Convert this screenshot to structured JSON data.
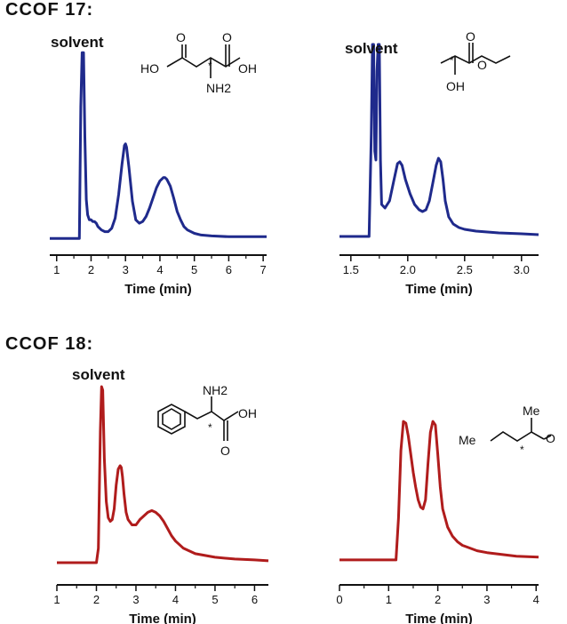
{
  "sections": [
    {
      "title": "CCOF 17:"
    },
    {
      "title": "CCOF 18:"
    }
  ],
  "chart_data": [
    {
      "type": "line",
      "title": "",
      "xlabel": "Time (min)",
      "ylabel": "",
      "xlim": [
        0.8,
        7.1
      ],
      "xticks": [
        1,
        2,
        3,
        4,
        5,
        6,
        7
      ],
      "x_tick_labels": [
        "1",
        "2",
        "3",
        "4",
        "5",
        "6",
        "7"
      ],
      "color": "#1f2a8c",
      "annotations": [
        {
          "text": "solvent"
        }
      ],
      "structure": {
        "labels": [
          "HO",
          "O",
          "O",
          "OH",
          "NH2",
          "*"
        ]
      },
      "series": [
        {
          "x": [
            0.8,
            1.66,
            1.7,
            1.74,
            1.78,
            1.82,
            1.86,
            1.9,
            1.95,
            2.0,
            2.05,
            2.1,
            2.15,
            2.2,
            2.3,
            2.4,
            2.5,
            2.6,
            2.7,
            2.8,
            2.9,
            2.97,
            3.0,
            3.03,
            3.1,
            3.2,
            3.3,
            3.4,
            3.5,
            3.6,
            3.7,
            3.8,
            3.9,
            4.0,
            4.1,
            4.15,
            4.2,
            4.3,
            4.4,
            4.5,
            4.6,
            4.7,
            4.8,
            5.0,
            5.2,
            5.5,
            6.0,
            6.5,
            7.1
          ],
          "y": [
            0.02,
            0.02,
            0.8,
            1.12,
            1.12,
            0.62,
            0.25,
            0.16,
            0.13,
            0.13,
            0.12,
            0.12,
            0.11,
            0.09,
            0.07,
            0.06,
            0.06,
            0.08,
            0.14,
            0.28,
            0.46,
            0.57,
            0.58,
            0.56,
            0.44,
            0.24,
            0.13,
            0.11,
            0.12,
            0.15,
            0.2,
            0.26,
            0.32,
            0.36,
            0.38,
            0.38,
            0.37,
            0.33,
            0.26,
            0.18,
            0.13,
            0.09,
            0.07,
            0.05,
            0.04,
            0.035,
            0.03,
            0.03,
            0.03
          ]
        }
      ]
    },
    {
      "type": "line",
      "title": "",
      "xlabel": "Time (min)",
      "ylabel": "",
      "xlim": [
        1.4,
        3.15
      ],
      "xticks": [
        1.5,
        2.0,
        2.5,
        3.0
      ],
      "x_tick_labels": [
        "1.5",
        "2.0",
        "2.5",
        "3.0"
      ],
      "color": "#1f2a8c",
      "annotations": [
        {
          "text": "solvent"
        }
      ],
      "structure": {
        "labels": [
          "O",
          "O",
          "OH",
          "*"
        ]
      },
      "series": [
        {
          "x": [
            1.4,
            1.66,
            1.68,
            1.69,
            1.7,
            1.71,
            1.72,
            1.73,
            1.74,
            1.75,
            1.76,
            1.77,
            1.8,
            1.84,
            1.88,
            1.91,
            1.93,
            1.95,
            1.98,
            2.02,
            2.06,
            2.1,
            2.13,
            2.16,
            2.19,
            2.22,
            2.25,
            2.27,
            2.29,
            2.31,
            2.33,
            2.36,
            2.4,
            2.45,
            2.5,
            2.6,
            2.7,
            2.8,
            3.0,
            3.15
          ],
          "y": [
            0.02,
            0.02,
            0.6,
            1.1,
            1.1,
            0.5,
            0.45,
            0.95,
            1.1,
            1.1,
            0.45,
            0.2,
            0.18,
            0.22,
            0.34,
            0.43,
            0.44,
            0.42,
            0.34,
            0.26,
            0.2,
            0.17,
            0.16,
            0.17,
            0.22,
            0.32,
            0.42,
            0.46,
            0.44,
            0.34,
            0.22,
            0.13,
            0.09,
            0.07,
            0.06,
            0.05,
            0.045,
            0.04,
            0.035,
            0.03
          ]
        }
      ]
    },
    {
      "type": "line",
      "title": "",
      "xlabel": "Time (min)",
      "ylabel": "",
      "xlim": [
        1,
        6.35
      ],
      "xticks": [
        1,
        2,
        3,
        4,
        5,
        6
      ],
      "x_tick_labels": [
        "1",
        "2",
        "3",
        "4",
        "5",
        "6"
      ],
      "color": "#b01c1c",
      "annotations": [
        {
          "text": "solvent"
        }
      ],
      "structure": {
        "labels": [
          "NH2",
          "OH",
          "O",
          "*"
        ]
      },
      "series": [
        {
          "x": [
            1,
            2.0,
            2.05,
            2.1,
            2.13,
            2.16,
            2.2,
            2.25,
            2.3,
            2.35,
            2.4,
            2.45,
            2.5,
            2.55,
            2.6,
            2.63,
            2.66,
            2.7,
            2.75,
            2.8,
            2.9,
            3.0,
            3.1,
            3.2,
            3.3,
            3.4,
            3.5,
            3.6,
            3.7,
            3.8,
            3.9,
            4.0,
            4.2,
            4.5,
            5.0,
            5.5,
            6.0,
            6.35
          ],
          "y": [
            0.02,
            0.02,
            0.1,
            0.75,
            1.0,
            0.98,
            0.6,
            0.36,
            0.27,
            0.25,
            0.26,
            0.32,
            0.45,
            0.54,
            0.56,
            0.55,
            0.5,
            0.4,
            0.3,
            0.26,
            0.23,
            0.23,
            0.26,
            0.28,
            0.3,
            0.31,
            0.3,
            0.28,
            0.25,
            0.21,
            0.17,
            0.14,
            0.1,
            0.07,
            0.05,
            0.04,
            0.035,
            0.03
          ]
        }
      ]
    },
    {
      "type": "line",
      "title": "",
      "xlabel": "Time (min)",
      "ylabel": "",
      "xlim": [
        0,
        4.05
      ],
      "xticks": [
        0,
        1,
        2,
        3,
        4
      ],
      "x_tick_labels": [
        "0",
        "1",
        "2",
        "3",
        "4"
      ],
      "color": "#b01c1c",
      "structure": {
        "labels": [
          "Me",
          "Me",
          "O",
          "*"
        ]
      },
      "series": [
        {
          "x": [
            0,
            1.15,
            1.2,
            1.25,
            1.3,
            1.35,
            1.4,
            1.45,
            1.5,
            1.55,
            1.6,
            1.65,
            1.7,
            1.75,
            1.8,
            1.85,
            1.9,
            1.95,
            2.0,
            2.05,
            2.1,
            2.2,
            2.3,
            2.4,
            2.5,
            2.6,
            2.8,
            3.0,
            3.3,
            3.6,
            4.05
          ],
          "y": [
            0.02,
            0.02,
            0.25,
            0.62,
            0.78,
            0.77,
            0.7,
            0.6,
            0.5,
            0.42,
            0.35,
            0.31,
            0.3,
            0.35,
            0.55,
            0.72,
            0.78,
            0.76,
            0.6,
            0.42,
            0.3,
            0.2,
            0.15,
            0.12,
            0.1,
            0.09,
            0.07,
            0.06,
            0.05,
            0.04,
            0.035
          ]
        }
      ]
    }
  ]
}
